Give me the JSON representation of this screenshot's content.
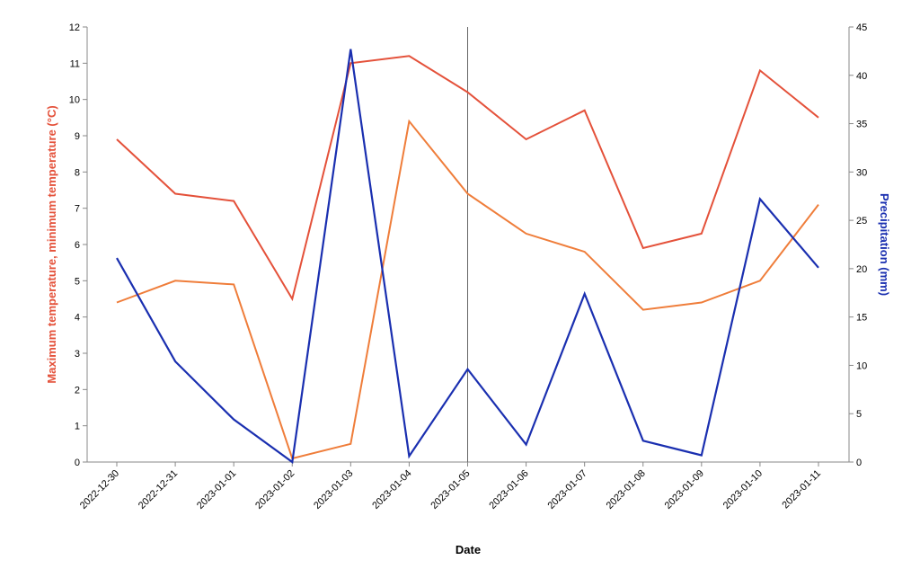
{
  "chart_data": {
    "type": "line",
    "xlabel": "Date",
    "ylabel_left": "Maximum temperature, minimum temperature (°C)",
    "ylabel_right": "Precipitation (mm)",
    "x": [
      "2022-12-30",
      "2022-12-31",
      "2023-01-01",
      "2023-01-02",
      "2023-01-03",
      "2023-01-04",
      "2023-01-05",
      "2023-01-06",
      "2023-01-07",
      "2023-01-08",
      "2023-01-09",
      "2023-01-10",
      "2023-01-11"
    ],
    "ylim_left": [
      0,
      12
    ],
    "ylim_right": [
      0,
      45
    ],
    "yticks_left": [
      "0",
      "1",
      "2",
      "3",
      "4",
      "5",
      "6",
      "7",
      "8",
      "9",
      "10",
      "11",
      "12"
    ],
    "yticks_right": [
      "0",
      "5",
      "10",
      "15",
      "20",
      "25",
      "30",
      "35",
      "40",
      "45"
    ],
    "grid": false,
    "vertical_rule_at": "2023-01-05",
    "series": [
      {
        "key": "tmax",
        "axis": "left",
        "color": "#e4513a",
        "values": [
          8.9,
          7.4,
          7.2,
          4.5,
          11.0,
          11.2,
          10.2,
          8.9,
          9.7,
          5.9,
          6.3,
          10.8,
          9.5
        ]
      },
      {
        "key": "tmin",
        "axis": "left",
        "color": "#ef7d3a",
        "values": [
          4.4,
          5.0,
          4.9,
          0.1,
          0.5,
          9.4,
          7.4,
          6.3,
          5.8,
          4.2,
          4.4,
          5.0,
          7.1
        ]
      },
      {
        "key": "precip",
        "axis": "right",
        "color": "#1a2fb0",
        "values": [
          21.1,
          10.4,
          4.4,
          0.0,
          42.7,
          0.6,
          9.6,
          1.8,
          17.4,
          2.2,
          0.7,
          27.2,
          20.1
        ]
      }
    ],
    "colors": {
      "left_title": "#e4513a",
      "right_title": "#1a2fb0",
      "axis": "#888888",
      "rule": "#666666"
    }
  }
}
